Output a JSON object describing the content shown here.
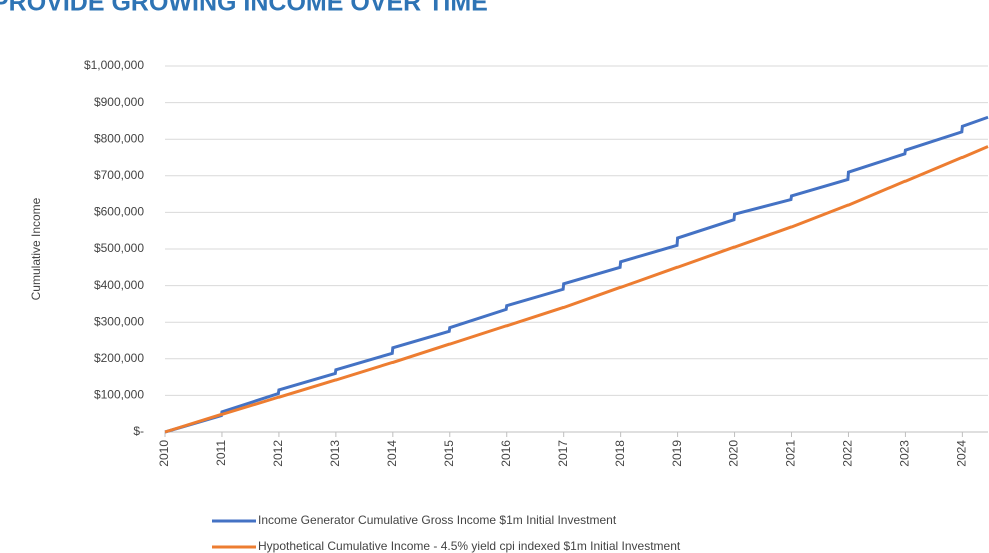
{
  "chart_data": {
    "type": "line",
    "title": "PROVIDE GROWING INCOME OVER TIME",
    "y_label": "Cumulative Income",
    "x": [
      2010,
      2010.99,
      2011,
      2011.99,
      2012,
      2012.99,
      2013,
      2013.99,
      2014,
      2014.99,
      2015,
      2015.99,
      2016,
      2016.99,
      2017,
      2017.99,
      2018,
      2018.99,
      2019,
      2019.99,
      2020,
      2020.99,
      2021,
      2021.99,
      2022,
      2022.99,
      2023,
      2023.99,
      2024,
      2024.45
    ],
    "series": [
      {
        "name": "Income Generator Cumulative  Gross Income $1m Initial Investment",
        "color": "#4472c4",
        "values": [
          0,
          45000,
          55000,
          105000,
          115000,
          160000,
          170000,
          215000,
          230000,
          275000,
          285000,
          335000,
          345000,
          390000,
          405000,
          450000,
          465000,
          510000,
          530000,
          580000,
          595000,
          635000,
          645000,
          690000,
          710000,
          760000,
          770000,
          820000,
          835000,
          860000
        ]
      },
      {
        "name": "Hypothetical Cumulative Income  - 4.5% yield cpi indexed $1m Initial Investment",
        "color": "#ed7d31",
        "values": [
          0,
          48000,
          48000,
          95000,
          95000,
          142000,
          142000,
          190000,
          190000,
          240000,
          240000,
          290000,
          290000,
          340000,
          340000,
          395000,
          395000,
          450000,
          450000,
          505000,
          505000,
          560000,
          560000,
          620000,
          620000,
          685000,
          685000,
          750000,
          750000,
          780000
        ]
      }
    ],
    "xlim": [
      2010,
      2024.45
    ],
    "xticks": [
      2010,
      2011,
      2012,
      2013,
      2014,
      2015,
      2016,
      2017,
      2018,
      2019,
      2020,
      2021,
      2022,
      2023,
      2024
    ],
    "ylim": [
      0,
      1000000
    ],
    "yticks": [
      {
        "value": 0,
        "label": "$-"
      },
      {
        "value": 100000,
        "label": "$100,000"
      },
      {
        "value": 200000,
        "label": "$200,000"
      },
      {
        "value": 300000,
        "label": "$300,000"
      },
      {
        "value": 400000,
        "label": "$400,000"
      },
      {
        "value": 500000,
        "label": "$500,000"
      },
      {
        "value": 600000,
        "label": "$600,000"
      },
      {
        "value": 700000,
        "label": "$700,000"
      },
      {
        "value": 800000,
        "label": "$800,000"
      },
      {
        "value": 900000,
        "label": "$900,000"
      },
      {
        "value": 1000000,
        "label": "$1,000,000"
      }
    ],
    "grid": true,
    "legend": "bottom"
  }
}
